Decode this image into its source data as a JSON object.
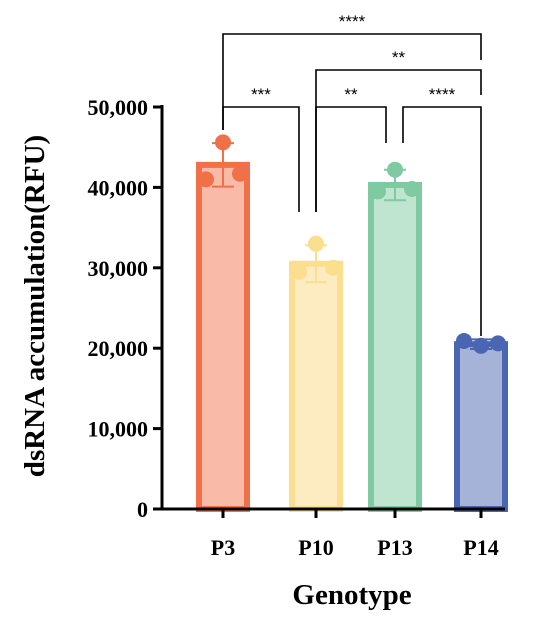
{
  "chart_data": {
    "type": "bar",
    "title": "",
    "xlabel": "Genotype",
    "ylabel": "dsRNA accumulation(RFU)",
    "ylim": [
      0,
      50000
    ],
    "yticks": [
      0,
      10000,
      20000,
      30000,
      40000,
      50000
    ],
    "ytick_labels": [
      "0",
      "10,000",
      "20,000",
      "30,000",
      "40,000",
      "50,000"
    ],
    "grid": false,
    "legend": "none",
    "categories": [
      "P3",
      "P10",
      "P13",
      "P14"
    ],
    "values": [
      42800,
      30500,
      40300,
      20500
    ],
    "error": [
      2700,
      2300,
      1900,
      600
    ],
    "points": [
      [
        45600,
        41000,
        41700
      ],
      [
        33000,
        29500,
        30000
      ],
      [
        42200,
        39500,
        39800
      ],
      [
        20300,
        20900,
        20600
      ]
    ],
    "colors": [
      {
        "edge": "#f07048",
        "fill": "#f9bba7"
      },
      {
        "edge": "#fbdf8e",
        "fill": "#fdebc1"
      },
      {
        "edge": "#7fcaa0",
        "fill": "#bfe5d0"
      },
      {
        "edge": "#4a66b0",
        "fill": "#a6b3d9"
      }
    ],
    "significance": [
      {
        "from": 0,
        "to": 1,
        "label": "***"
      },
      {
        "from": 1,
        "to": 2,
        "label": "**"
      },
      {
        "from": 2,
        "to": 3,
        "label": "****"
      },
      {
        "from": 1,
        "to": 3,
        "label": "**"
      },
      {
        "from": 0,
        "to": 3,
        "label": "****"
      }
    ]
  }
}
